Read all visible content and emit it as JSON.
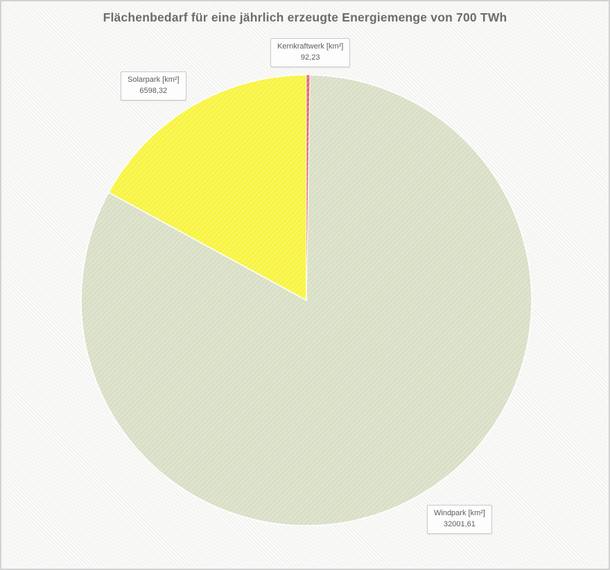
{
  "title": "Flächenbedarf für eine jährlich erzeugte Energiemenge von 700 TWh",
  "chart_data": {
    "type": "pie",
    "title": "Flächenbedarf für eine jährlich erzeugte Energiemenge von 700 TWh",
    "unit": "km²",
    "start_angle_deg": -90,
    "direction": "clockwise",
    "total": 38692.16,
    "legend_position": "outside-callout-labels",
    "slices": [
      {
        "id": "kernkraftwerk",
        "label": "Kernkraftwerk  [km²]",
        "value": 92.23,
        "display_value": "92,23",
        "color": "#e36c6c"
      },
      {
        "id": "windpark",
        "label": "Windpark  [km²]",
        "value": 32001.61,
        "display_value": "32001,61",
        "color": "#d9dfc6"
      },
      {
        "id": "solarpark",
        "label": "Solarpark  [km²]",
        "value": 6598.32,
        "display_value": "6598,32",
        "color": "#f8f441"
      }
    ]
  }
}
